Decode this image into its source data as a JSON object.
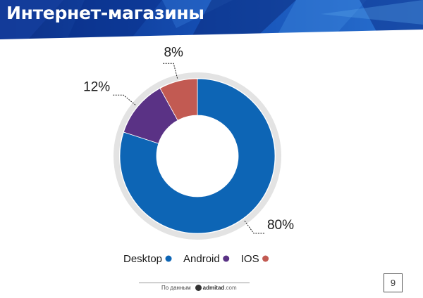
{
  "slide": {
    "title": "Интернет-магазины",
    "page_number": "9"
  },
  "footer": {
    "source_prefix": "По данным",
    "brand_main": "admitad",
    "brand_suffix": ".com"
  },
  "colors": {
    "banner_dark": "#0a2a7a",
    "banner_mid": "#1550b8",
    "banner_light": "#3a86d8",
    "ring": "#e3e3e3"
  },
  "chart_data": {
    "type": "pie",
    "variant": "donut",
    "categories": [
      "Desktop",
      "Android",
      "IOS"
    ],
    "values": [
      80,
      12,
      8
    ],
    "labels": [
      "80%",
      "12%",
      "8%"
    ],
    "colors": [
      "#0d65b5",
      "#5a3285",
      "#c25a52"
    ],
    "legend": "bottom"
  }
}
